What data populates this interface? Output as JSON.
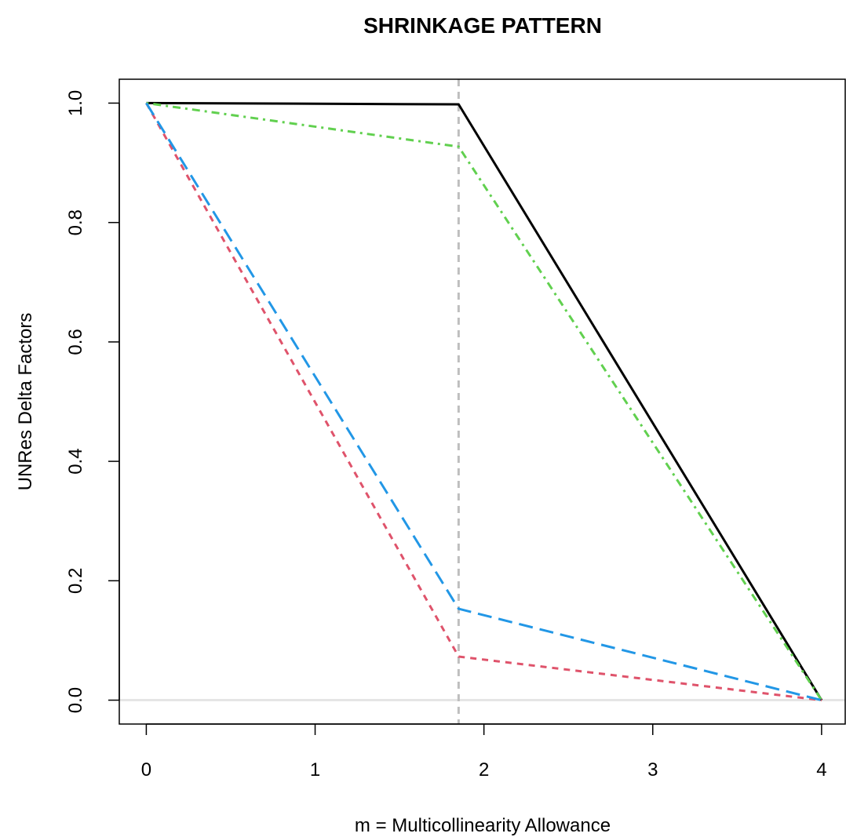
{
  "chart_data": {
    "type": "line",
    "title": "SHRINKAGE PATTERN",
    "xlabel": "m = Multicollinearity Allowance",
    "ylabel": "UNRes Delta Factors",
    "xlim": [
      -0.16,
      4.14
    ],
    "ylim": [
      -0.04,
      1.04
    ],
    "xticks": [
      0,
      1,
      2,
      3,
      4
    ],
    "yticks": [
      0.0,
      0.2,
      0.4,
      0.6,
      0.8,
      1.0
    ],
    "xtick_labels": [
      "0",
      "1",
      "2",
      "3",
      "4"
    ],
    "ytick_labels": [
      "0.0",
      "0.2",
      "0.4",
      "0.6",
      "0.8",
      "1.0"
    ],
    "grid": false,
    "reference_lines": {
      "vertical": {
        "x": 1.85,
        "color": "#bebebe",
        "style": "dashed"
      },
      "horizontal": {
        "y": 0.0,
        "color": "#e5e5e5",
        "style": "solid"
      }
    },
    "series": [
      {
        "x": [
          0,
          1.85,
          4
        ],
        "y": [
          1.0,
          0.998,
          0.0
        ],
        "color": "#000000",
        "style": "solid"
      },
      {
        "x": [
          0,
          1.85,
          4
        ],
        "y": [
          1.0,
          0.073,
          0.0
        ],
        "color": "#df536b",
        "style": "dashed"
      },
      {
        "x": [
          0,
          1.85,
          4
        ],
        "y": [
          1.0,
          0.927,
          0.0
        ],
        "color": "#61d04f",
        "style": "dotdash"
      },
      {
        "x": [
          0,
          1.85,
          4
        ],
        "y": [
          1.0,
          0.153,
          0.0
        ],
        "color": "#2297e6",
        "style": "longdash"
      }
    ]
  }
}
